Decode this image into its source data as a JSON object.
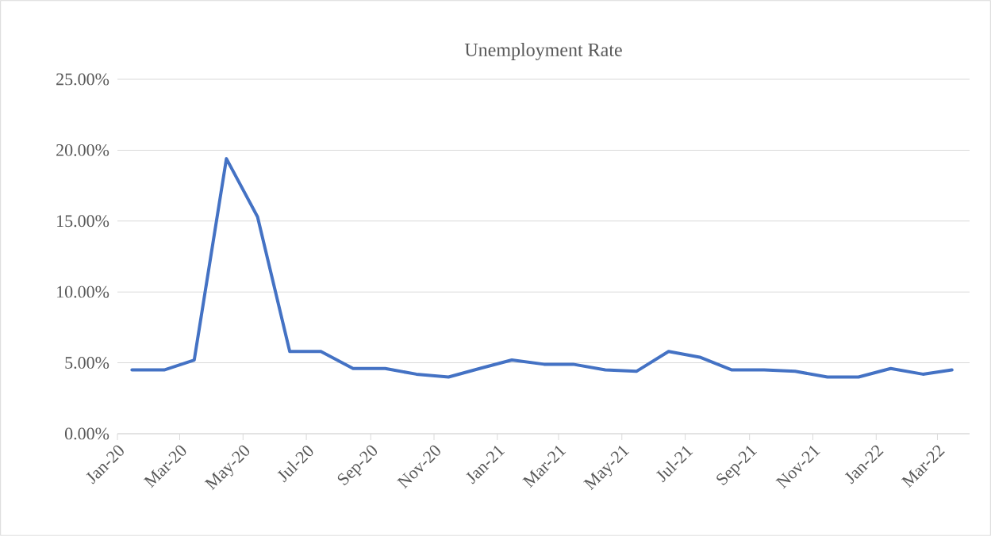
{
  "chart_data": {
    "type": "line",
    "title": "Unemployment Rate",
    "x": [
      "2020-01-15",
      "2020-02-15",
      "2020-03-15",
      "2020-04-15",
      "2020-05-15",
      "2020-06-15",
      "2020-07-15",
      "2020-08-15",
      "2020-09-15",
      "2020-10-15",
      "2020-11-15",
      "2020-12-15",
      "2021-01-15",
      "2021-02-15",
      "2021-03-15",
      "2021-04-15",
      "2021-05-15",
      "2021-06-15",
      "2021-07-15",
      "2021-08-15",
      "2021-09-15",
      "2021-10-15",
      "2021-11-15",
      "2021-12-15",
      "2022-01-15",
      "2022-02-15",
      "2022-03-15"
    ],
    "series": [
      {
        "color": "#4472c4",
        "values": [
          4.5,
          4.5,
          5.2,
          19.4,
          15.3,
          5.8,
          5.8,
          4.6,
          4.6,
          4.2,
          4.0,
          4.6,
          5.2,
          4.9,
          4.9,
          4.5,
          4.4,
          5.8,
          5.4,
          4.5,
          4.5,
          4.4,
          4.0,
          4.0,
          4.6,
          4.2,
          4.5
        ]
      }
    ],
    "xlim": [
      "2020-01-01",
      "2022-04-01"
    ],
    "xticks": [
      {
        "value": "2020-01-01",
        "label": "Jan-20"
      },
      {
        "value": "2020-03-01",
        "label": "Mar-20"
      },
      {
        "value": "2020-05-01",
        "label": "May-20"
      },
      {
        "value": "2020-07-01",
        "label": "Jul-20"
      },
      {
        "value": "2020-09-01",
        "label": "Sep-20"
      },
      {
        "value": "2020-11-01",
        "label": "Nov-20"
      },
      {
        "value": "2021-01-01",
        "label": "Jan-21"
      },
      {
        "value": "2021-03-01",
        "label": "Mar-21"
      },
      {
        "value": "2021-05-01",
        "label": "May-21"
      },
      {
        "value": "2021-07-01",
        "label": "Jul-21"
      },
      {
        "value": "2021-09-01",
        "label": "Sep-21"
      },
      {
        "value": "2021-11-01",
        "label": "Nov-21"
      },
      {
        "value": "2022-01-01",
        "label": "Jan-22"
      },
      {
        "value": "2022-03-01",
        "label": "Mar-22"
      }
    ],
    "ylim": [
      0,
      25
    ],
    "yticks": [
      {
        "value": 0,
        "label": "0.00%"
      },
      {
        "value": 5,
        "label": "5.00%"
      },
      {
        "value": 10,
        "label": "10.00%"
      },
      {
        "value": 15,
        "label": "15.00%"
      },
      {
        "value": 20,
        "label": "20.00%"
      },
      {
        "value": 25,
        "label": "25.00%"
      }
    ],
    "grid": "y",
    "legend": false,
    "marker": "none",
    "line_style": "solid"
  }
}
